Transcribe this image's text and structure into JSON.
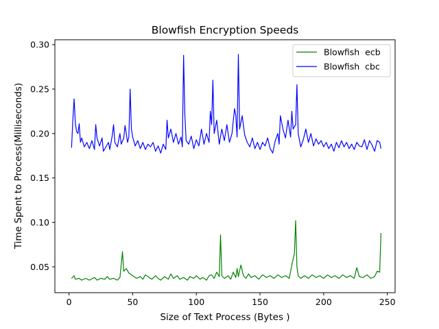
{
  "chart_data": {
    "type": "line",
    "title": "Blowfish Encryption Speeds",
    "xlabel": "Size of Text Process (Bytes )",
    "ylabel": "Time Spent to Process(Milliseconds)",
    "xlim": [
      -11.1,
      256.1
    ],
    "ylim": [
      0.0209,
      0.3055
    ],
    "xticks": [
      0,
      50,
      100,
      150,
      200,
      250
    ],
    "yticks": [
      0.05,
      0.1,
      0.15,
      0.2,
      0.25,
      0.3
    ],
    "ytick_labels": [
      "0.05",
      "0.10",
      "0.15",
      "0.20",
      "0.25",
      "0.30"
    ],
    "legend_position": "top-right",
    "grid": false,
    "series": [
      {
        "name": "Blowfish  ecb",
        "color": "#008000",
        "points": [
          [
            2,
            0.037
          ],
          [
            4,
            0.04
          ],
          [
            5,
            0.036
          ],
          [
            8,
            0.037
          ],
          [
            10,
            0.035
          ],
          [
            13,
            0.037
          ],
          [
            16,
            0.035
          ],
          [
            20,
            0.038
          ],
          [
            22,
            0.035
          ],
          [
            25,
            0.037
          ],
          [
            28,
            0.036
          ],
          [
            30,
            0.039
          ],
          [
            32,
            0.036
          ],
          [
            35,
            0.037
          ],
          [
            38,
            0.035
          ],
          [
            40,
            0.038
          ],
          [
            42,
            0.067
          ],
          [
            43,
            0.045
          ],
          [
            45,
            0.048
          ],
          [
            47,
            0.043
          ],
          [
            50,
            0.04
          ],
          [
            53,
            0.037
          ],
          [
            56,
            0.039
          ],
          [
            58,
            0.036
          ],
          [
            60,
            0.041
          ],
          [
            63,
            0.038
          ],
          [
            65,
            0.036
          ],
          [
            68,
            0.04
          ],
          [
            70,
            0.037
          ],
          [
            72,
            0.035
          ],
          [
            75,
            0.039
          ],
          [
            78,
            0.036
          ],
          [
            80,
            0.042
          ],
          [
            82,
            0.037
          ],
          [
            85,
            0.04
          ],
          [
            87,
            0.036
          ],
          [
            90,
            0.038
          ],
          [
            93,
            0.035
          ],
          [
            95,
            0.039
          ],
          [
            98,
            0.037
          ],
          [
            100,
            0.04
          ],
          [
            103,
            0.036
          ],
          [
            105,
            0.038
          ],
          [
            108,
            0.035
          ],
          [
            110,
            0.04
          ],
          [
            112,
            0.041
          ],
          [
            114,
            0.037
          ],
          [
            116,
            0.044
          ],
          [
            118,
            0.039
          ],
          [
            119,
            0.086
          ],
          [
            120,
            0.04
          ],
          [
            122,
            0.037
          ],
          [
            125,
            0.04
          ],
          [
            127,
            0.036
          ],
          [
            129,
            0.044
          ],
          [
            131,
            0.038
          ],
          [
            132,
            0.048
          ],
          [
            133,
            0.039
          ],
          [
            135,
            0.052
          ],
          [
            137,
            0.04
          ],
          [
            139,
            0.037
          ],
          [
            141,
            0.042
          ],
          [
            143,
            0.038
          ],
          [
            146,
            0.04
          ],
          [
            149,
            0.036
          ],
          [
            152,
            0.041
          ],
          [
            155,
            0.038
          ],
          [
            158,
            0.04
          ],
          [
            161,
            0.037
          ],
          [
            164,
            0.041
          ],
          [
            167,
            0.038
          ],
          [
            170,
            0.04
          ],
          [
            173,
            0.037
          ],
          [
            175,
            0.052
          ],
          [
            177,
            0.065
          ],
          [
            178,
            0.102
          ],
          [
            179,
            0.05
          ],
          [
            180,
            0.04
          ],
          [
            182,
            0.037
          ],
          [
            185,
            0.04
          ],
          [
            188,
            0.037
          ],
          [
            191,
            0.041
          ],
          [
            194,
            0.038
          ],
          [
            197,
            0.04
          ],
          [
            200,
            0.037
          ],
          [
            203,
            0.041
          ],
          [
            206,
            0.038
          ],
          [
            209,
            0.04
          ],
          [
            212,
            0.037
          ],
          [
            215,
            0.041
          ],
          [
            218,
            0.038
          ],
          [
            221,
            0.04
          ],
          [
            224,
            0.037
          ],
          [
            226,
            0.049
          ],
          [
            228,
            0.039
          ],
          [
            231,
            0.038
          ],
          [
            234,
            0.041
          ],
          [
            237,
            0.037
          ],
          [
            240,
            0.039
          ],
          [
            242,
            0.045
          ],
          [
            244,
            0.044
          ],
          [
            245,
            0.088
          ]
        ]
      },
      {
        "name": "Blowfish  cbc",
        "color": "#0000ff",
        "points": [
          [
            2,
            0.184
          ],
          [
            3,
            0.215
          ],
          [
            4,
            0.239
          ],
          [
            5,
            0.211
          ],
          [
            6,
            0.202
          ],
          [
            7,
            0.2
          ],
          [
            8,
            0.211
          ],
          [
            9,
            0.19
          ],
          [
            10,
            0.195
          ],
          [
            12,
            0.185
          ],
          [
            14,
            0.19
          ],
          [
            16,
            0.183
          ],
          [
            18,
            0.192
          ],
          [
            20,
            0.182
          ],
          [
            21,
            0.21
          ],
          [
            22,
            0.195
          ],
          [
            24,
            0.186
          ],
          [
            26,
            0.195
          ],
          [
            27,
            0.18
          ],
          [
            29,
            0.185
          ],
          [
            31,
            0.19
          ],
          [
            32,
            0.182
          ],
          [
            34,
            0.198
          ],
          [
            35,
            0.21
          ],
          [
            36,
            0.19
          ],
          [
            38,
            0.185
          ],
          [
            40,
            0.2
          ],
          [
            41,
            0.188
          ],
          [
            43,
            0.195
          ],
          [
            44,
            0.209
          ],
          [
            46,
            0.19
          ],
          [
            47,
            0.196
          ],
          [
            48,
            0.25
          ],
          [
            49,
            0.205
          ],
          [
            50,
            0.196
          ],
          [
            52,
            0.186
          ],
          [
            54,
            0.192
          ],
          [
            56,
            0.183
          ],
          [
            58,
            0.19
          ],
          [
            60,
            0.182
          ],
          [
            62,
            0.188
          ],
          [
            64,
            0.185
          ],
          [
            66,
            0.19
          ],
          [
            68,
            0.18
          ],
          [
            70,
            0.186
          ],
          [
            72,
            0.178
          ],
          [
            74,
            0.188
          ],
          [
            76,
            0.182
          ],
          [
            77,
            0.215
          ],
          [
            78,
            0.195
          ],
          [
            80,
            0.205
          ],
          [
            82,
            0.19
          ],
          [
            84,
            0.2
          ],
          [
            86,
            0.188
          ],
          [
            88,
            0.196
          ],
          [
            89,
            0.185
          ],
          [
            90,
            0.288
          ],
          [
            91,
            0.22
          ],
          [
            92,
            0.192
          ],
          [
            94,
            0.188
          ],
          [
            96,
            0.197
          ],
          [
            98,
            0.183
          ],
          [
            100,
            0.193
          ],
          [
            102,
            0.186
          ],
          [
            104,
            0.205
          ],
          [
            106,
            0.188
          ],
          [
            108,
            0.2
          ],
          [
            110,
            0.19
          ],
          [
            111,
            0.225
          ],
          [
            112,
            0.21
          ],
          [
            113,
            0.26
          ],
          [
            114,
            0.2
          ],
          [
            116,
            0.215
          ],
          [
            118,
            0.188
          ],
          [
            120,
            0.205
          ],
          [
            122,
            0.192
          ],
          [
            124,
            0.21
          ],
          [
            126,
            0.19
          ],
          [
            128,
            0.2
          ],
          [
            130,
            0.228
          ],
          [
            131,
            0.22
          ],
          [
            132,
            0.196
          ],
          [
            133,
            0.289
          ],
          [
            134,
            0.205
          ],
          [
            136,
            0.22
          ],
          [
            138,
            0.198
          ],
          [
            140,
            0.19
          ],
          [
            142,
            0.185
          ],
          [
            144,
            0.195
          ],
          [
            146,
            0.183
          ],
          [
            148,
            0.19
          ],
          [
            150,
            0.182
          ],
          [
            152,
            0.19
          ],
          [
            154,
            0.186
          ],
          [
            156,
            0.195
          ],
          [
            158,
            0.183
          ],
          [
            160,
            0.178
          ],
          [
            162,
            0.192
          ],
          [
            164,
            0.2
          ],
          [
            165,
            0.188
          ],
          [
            166,
            0.22
          ],
          [
            168,
            0.205
          ],
          [
            170,
            0.195
          ],
          [
            172,
            0.215
          ],
          [
            174,
            0.196
          ],
          [
            175,
            0.225
          ],
          [
            176,
            0.205
          ],
          [
            178,
            0.21
          ],
          [
            179,
            0.255
          ],
          [
            180,
            0.2
          ],
          [
            182,
            0.185
          ],
          [
            184,
            0.193
          ],
          [
            186,
            0.205
          ],
          [
            188,
            0.19
          ],
          [
            190,
            0.2
          ],
          [
            192,
            0.186
          ],
          [
            194,
            0.194
          ],
          [
            196,
            0.188
          ],
          [
            198,
            0.192
          ],
          [
            200,
            0.185
          ],
          [
            202,
            0.19
          ],
          [
            204,
            0.183
          ],
          [
            206,
            0.188
          ],
          [
            208,
            0.18
          ],
          [
            210,
            0.19
          ],
          [
            212,
            0.184
          ],
          [
            214,
            0.192
          ],
          [
            216,
            0.185
          ],
          [
            218,
            0.19
          ],
          [
            220,
            0.183
          ],
          [
            222,
            0.188
          ],
          [
            224,
            0.182
          ],
          [
            226,
            0.19
          ],
          [
            228,
            0.186
          ],
          [
            230,
            0.185
          ],
          [
            232,
            0.193
          ],
          [
            234,
            0.182
          ],
          [
            236,
            0.192
          ],
          [
            238,
            0.187
          ],
          [
            240,
            0.18
          ],
          [
            242,
            0.192
          ],
          [
            244,
            0.19
          ],
          [
            245,
            0.183
          ]
        ]
      }
    ]
  }
}
